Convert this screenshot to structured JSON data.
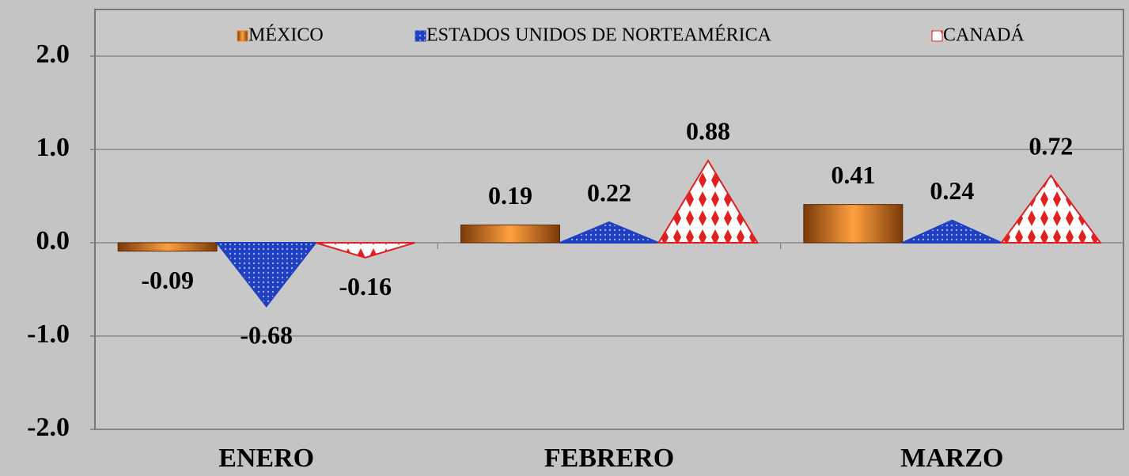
{
  "chart_data": {
    "type": "bar",
    "categories": [
      "ENERO",
      "FEBRERO",
      "MARZO"
    ],
    "series": [
      {
        "name": "MÉXICO",
        "color": "#e8822a",
        "shape": "bar",
        "values": [
          -0.09,
          0.19,
          0.41
        ]
      },
      {
        "name": "ESTADOS UNIDOS DE NORTEAMÉRICA",
        "color": "#1f3fbf",
        "shape": "triangle",
        "values": [
          -0.68,
          0.22,
          0.24
        ]
      },
      {
        "name": "CANADÁ",
        "color": "#e02020",
        "shape": "triangle",
        "values": [
          -0.16,
          0.88,
          0.72
        ]
      }
    ],
    "ylim": [
      -2,
      2.5
    ],
    "yticks": [
      {
        "value": -2,
        "label": "-2.0"
      },
      {
        "value": -1,
        "label": "-1.0"
      },
      {
        "value": 0,
        "label": "0.0"
      },
      {
        "value": 1,
        "label": "1.0"
      },
      {
        "value": 2,
        "label": "2.0"
      }
    ],
    "grid": true
  }
}
